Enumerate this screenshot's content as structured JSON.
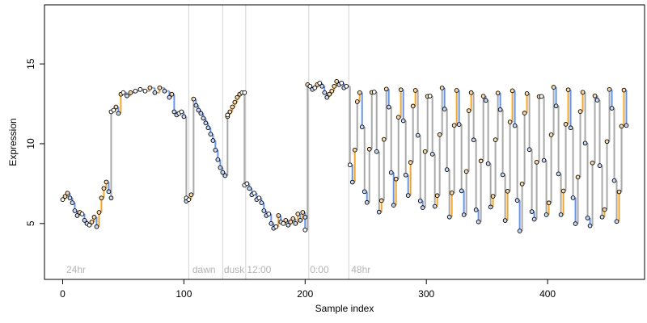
{
  "chart_data": {
    "type": "line",
    "title": "",
    "xlabel": "Sample index",
    "ylabel": "Expression",
    "xlim": [
      -15,
      480
    ],
    "ylim": [
      1.5,
      18.7
    ],
    "xticks": [
      0,
      100,
      200,
      300,
      400
    ],
    "yticks": [
      5,
      10,
      15
    ],
    "grid": false,
    "legend": "none",
    "colors": {
      "step_line": "#a9a9a9",
      "rise": "#f5a623",
      "fall": "#6495ed",
      "points_edge": "#000000",
      "vline": "#d3d3d3",
      "phase_text": "#b4b4b4"
    },
    "phase_boundaries": [
      104,
      132,
      151,
      203,
      236
    ],
    "phase_labels": [
      {
        "text": "24hr",
        "x": 3
      },
      {
        "text": "dawn",
        "x": 107
      },
      {
        "text": "dusk",
        "x": 133
      },
      {
        "text": "12:00",
        "x": 152
      },
      {
        "text": "0:00",
        "x": 204
      },
      {
        "text": "48hr",
        "x": 238
      }
    ],
    "segments": [
      {
        "x": [
          0,
          2,
          4,
          6,
          8,
          10,
          12,
          14,
          16,
          18,
          20,
          22,
          24,
          26,
          28,
          30,
          32,
          34,
          36,
          38,
          40
        ],
        "y": [
          6.5,
          6.7,
          6.9,
          6.6,
          6.3,
          5.8,
          5.5,
          5.7,
          5.6,
          5.2,
          5.0,
          4.9,
          5.1,
          5.4,
          4.8,
          5.7,
          6.6,
          7.2,
          7.6,
          7.0,
          6.6
        ]
      },
      {
        "x": [
          40,
          42,
          44,
          46,
          48,
          50,
          53,
          56,
          60,
          64,
          68,
          72,
          76,
          80,
          84,
          88,
          90,
          92,
          94,
          96,
          98,
          100,
          102
        ],
        "y": [
          12.0,
          12.1,
          12.3,
          11.9,
          13.1,
          13.2,
          13.0,
          13.2,
          13.3,
          13.4,
          13.3,
          13.5,
          13.2,
          13.5,
          13.3,
          12.9,
          13.1,
          12.0,
          11.8,
          11.9,
          12.0,
          11.7,
          6.4
        ]
      },
      {
        "x": [
          102,
          104,
          106,
          108,
          110,
          112,
          114,
          116,
          118,
          120,
          122,
          124,
          126,
          128,
          130,
          132,
          134,
          136
        ],
        "y": [
          6.6,
          6.5,
          6.8,
          12.8,
          12.4,
          12.1,
          11.9,
          11.6,
          11.3,
          11.0,
          10.6,
          10.2,
          9.6,
          9.0,
          8.5,
          8.2,
          8.0,
          11.7
        ]
      },
      {
        "x": [
          136,
          138,
          140,
          142,
          144,
          146,
          148,
          150
        ],
        "y": [
          11.8,
          12.0,
          12.3,
          12.6,
          12.9,
          13.1,
          13.2,
          13.2
        ]
      },
      {
        "x": [
          150,
          152,
          154,
          156,
          158,
          160,
          162,
          164,
          166,
          168,
          170,
          172,
          174,
          176,
          178,
          180,
          182,
          184,
          186,
          188,
          190,
          192,
          194,
          196,
          198,
          200
        ],
        "y": [
          7.4,
          7.5,
          7.2,
          6.8,
          6.9,
          6.5,
          6.6,
          6.3,
          5.8,
          5.5,
          5.6,
          5.0,
          4.7,
          4.8,
          5.5,
          5.1,
          5.0,
          5.2,
          4.9,
          5.1,
          5.3,
          5.0,
          5.6,
          5.2,
          5.7,
          5.4
        ]
      },
      {
        "x": [
          200,
          202,
          204,
          206,
          208,
          210,
          212,
          214,
          216,
          218,
          220,
          222,
          224,
          226,
          228,
          230,
          232,
          234
        ],
        "y": [
          4.6,
          13.7,
          13.6,
          13.4,
          13.5,
          13.7,
          13.8,
          13.6,
          13.2,
          12.9,
          13.1,
          13.3,
          13.6,
          13.9,
          13.7,
          13.8,
          13.5,
          13.6
        ]
      }
    ],
    "oscillation": {
      "start": 237,
      "end": 466,
      "period": 11.5,
      "peaks": [
        13.4,
        13.7,
        13.6,
        13.5,
        13.4,
        13.6,
        13.5,
        13.3,
        13.4,
        13.5,
        13.3,
        13.4,
        13.2,
        13.6,
        13.8,
        13.3,
        13.4,
        13.5,
        13.5,
        13.4,
        13.6
      ],
      "troughs": [
        7.6,
        6.1,
        5.4,
        6.2,
        6.6,
        5.6,
        5.9,
        5.3,
        5.5,
        4.8,
        5.7,
        5.2,
        4.6,
        4.8,
        5.3,
        5.4,
        4.9,
        4.5,
        5.0,
        5.1,
        4.2
      ]
    }
  }
}
